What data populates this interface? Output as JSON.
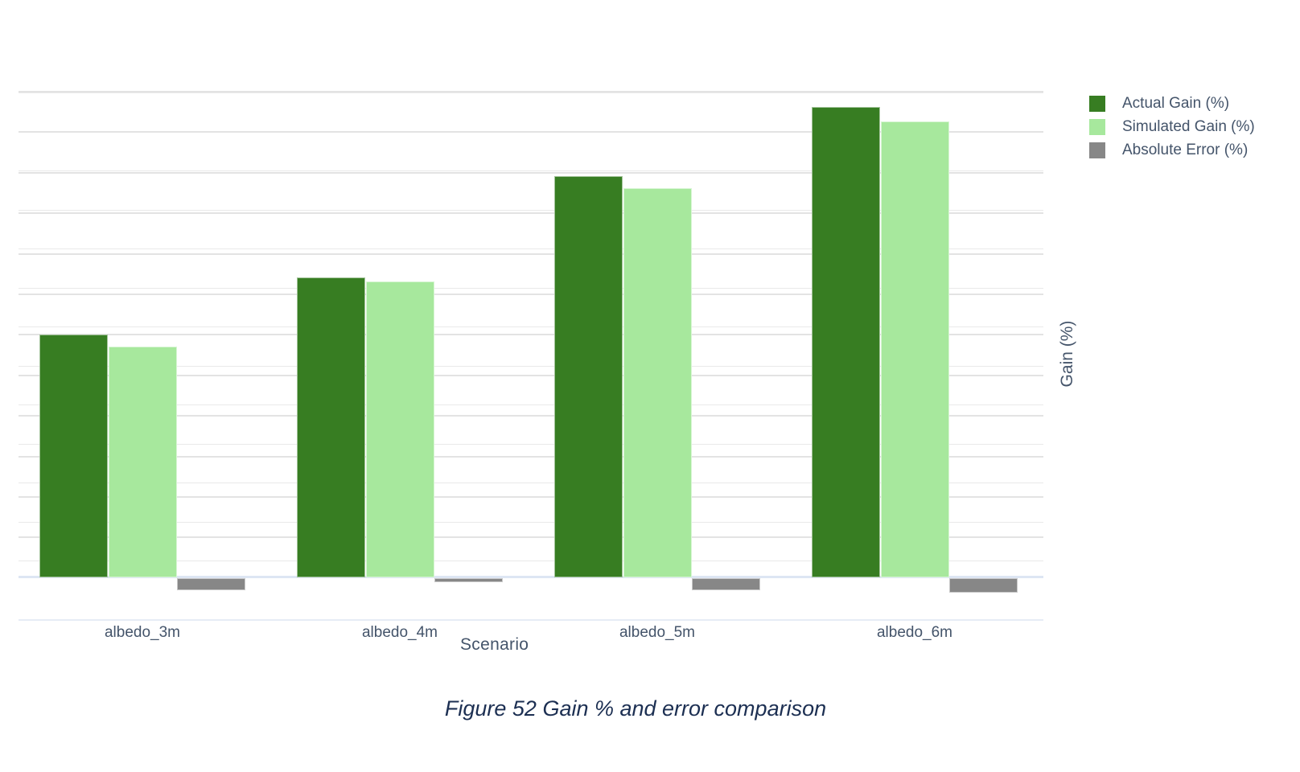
{
  "figure": {
    "caption": "Figure 52 Gain % and error comparison"
  },
  "chart_data": {
    "type": "bar",
    "title": "",
    "categories": [
      "albedo_3m",
      "albedo_4m",
      "albedo_5m",
      "albedo_6m"
    ],
    "series": [
      {
        "name": "Actual Gain (%)",
        "color": "#377D22",
        "values": [
          6.0,
          7.4,
          9.9,
          11.6
        ]
      },
      {
        "name": "Simulated Gain (%)",
        "color": "#A7E89D",
        "values": [
          5.7,
          7.3,
          9.6,
          11.25
        ]
      },
      {
        "name": "Absolute Error (%)",
        "color": "#878787",
        "values": [
          0.3,
          0.1,
          0.3,
          0.35
        ],
        "plotted": "below-baseline"
      }
    ],
    "xlabel": "Scenario",
    "ylabel": "Gain (%)",
    "ylim": [
      0,
      12
    ],
    "y_tick_labels_visible": false,
    "x_tick_labels_visible": true,
    "grid": true,
    "legend_position": "right",
    "colors": {
      "actual_gain": "#377D22",
      "simulated_gain": "#A7E89D",
      "absolute_error": "#878787",
      "gridline": "#e3e3e3",
      "baseline": "#dde6f3",
      "text": "#44546A",
      "caption_text": "#1C2F52"
    }
  }
}
